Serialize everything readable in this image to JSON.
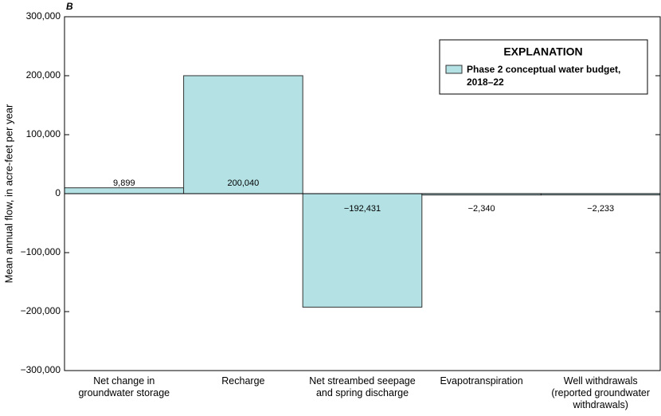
{
  "chart_data": {
    "type": "bar",
    "panel_label": "B",
    "y_label": "Mean annual flow, in  acre-feet per year",
    "legend_title": "EXPLANATION",
    "categories": [
      "Net change in groundwater storage",
      "Recharge",
      "Net streambed seepage and spring discharge",
      "Evapotranspiration",
      "Well withdrawals (reported groundwater withdrawals)"
    ],
    "series": [
      {
        "name": "Phase 2 conceptual water budget, 2018–22",
        "color": "#b3e1e4",
        "values": [
          9899,
          200040,
          -192431,
          -2340,
          -2233
        ],
        "value_labels": [
          "9,899",
          "200,040",
          "−192,431",
          "−2,340",
          "−2,233"
        ]
      }
    ],
    "ylim": [
      -300000,
      300000
    ],
    "yticks": [
      {
        "value": -300000,
        "label": "−300,000"
      },
      {
        "value": -200000,
        "label": "−200,000"
      },
      {
        "value": -100000,
        "label": "−100,000"
      },
      0,
      {
        "value": 100000,
        "label": "100,000"
      },
      {
        "value": 200000,
        "label": "200,000"
      },
      {
        "value": 300000,
        "label": "300,000"
      }
    ],
    "legend": "upper right"
  }
}
